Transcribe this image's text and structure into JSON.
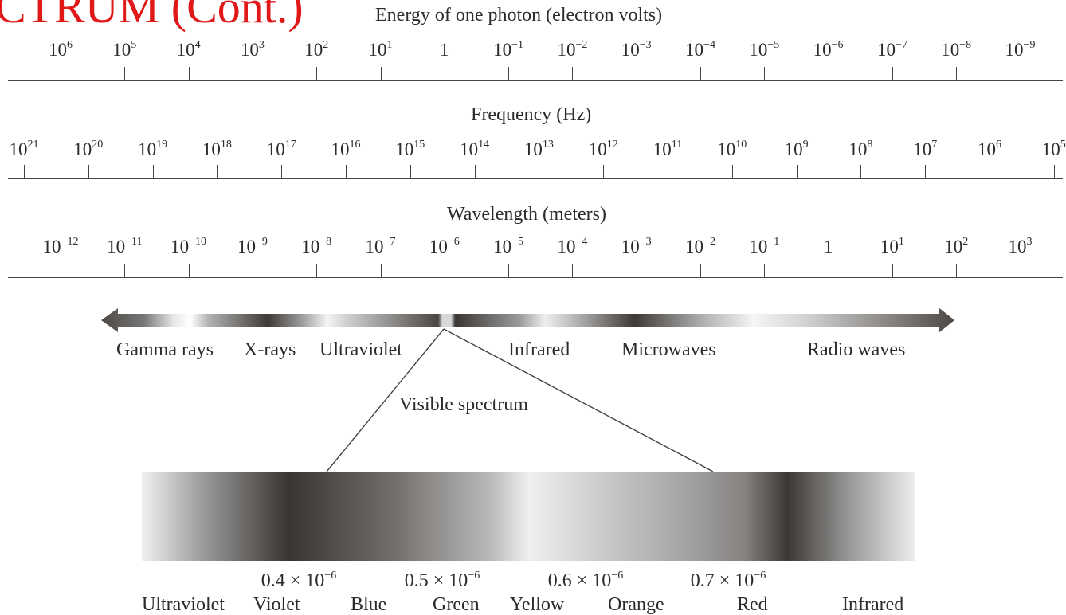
{
  "header": {
    "title_fragment": "CTRUM (Cont.)"
  },
  "energy_scale": {
    "title": "Energy of one photon (electron volts)",
    "ticks": [
      {
        "base": "10",
        "exp": "6"
      },
      {
        "base": "10",
        "exp": "5"
      },
      {
        "base": "10",
        "exp": "4"
      },
      {
        "base": "10",
        "exp": "3"
      },
      {
        "base": "10",
        "exp": "2"
      },
      {
        "base": "10",
        "exp": "1"
      },
      {
        "base": "1",
        "exp": ""
      },
      {
        "base": "10",
        "exp": "−1"
      },
      {
        "base": "10",
        "exp": "−2"
      },
      {
        "base": "10",
        "exp": "−3"
      },
      {
        "base": "10",
        "exp": "−4"
      },
      {
        "base": "10",
        "exp": "−5"
      },
      {
        "base": "10",
        "exp": "−6"
      },
      {
        "base": "10",
        "exp": "−7"
      },
      {
        "base": "10",
        "exp": "−8"
      },
      {
        "base": "10",
        "exp": "−9"
      }
    ]
  },
  "frequency_scale": {
    "title": "Frequency (Hz)",
    "ticks": [
      {
        "base": "10",
        "exp": "21"
      },
      {
        "base": "10",
        "exp": "20"
      },
      {
        "base": "10",
        "exp": "19"
      },
      {
        "base": "10",
        "exp": "18"
      },
      {
        "base": "10",
        "exp": "17"
      },
      {
        "base": "10",
        "exp": "16"
      },
      {
        "base": "10",
        "exp": "15"
      },
      {
        "base": "10",
        "exp": "14"
      },
      {
        "base": "10",
        "exp": "13"
      },
      {
        "base": "10",
        "exp": "12"
      },
      {
        "base": "10",
        "exp": "11"
      },
      {
        "base": "10",
        "exp": "10"
      },
      {
        "base": "10",
        "exp": "9"
      },
      {
        "base": "10",
        "exp": "8"
      },
      {
        "base": "10",
        "exp": "7"
      },
      {
        "base": "10",
        "exp": "6"
      },
      {
        "base": "10",
        "exp": "5"
      }
    ]
  },
  "wavelength_scale": {
    "title": "Wavelength (meters)",
    "ticks": [
      {
        "base": "10",
        "exp": "−12"
      },
      {
        "base": "10",
        "exp": "−11"
      },
      {
        "base": "10",
        "exp": "−10"
      },
      {
        "base": "10",
        "exp": "−9"
      },
      {
        "base": "10",
        "exp": "−8"
      },
      {
        "base": "10",
        "exp": "−7"
      },
      {
        "base": "10",
        "exp": "−6"
      },
      {
        "base": "10",
        "exp": "−5"
      },
      {
        "base": "10",
        "exp": "−4"
      },
      {
        "base": "10",
        "exp": "−3"
      },
      {
        "base": "10",
        "exp": "−2"
      },
      {
        "base": "10",
        "exp": "−1"
      },
      {
        "base": "1",
        "exp": ""
      },
      {
        "base": "10",
        "exp": "1"
      },
      {
        "base": "10",
        "exp": "2"
      },
      {
        "base": "10",
        "exp": "3"
      }
    ]
  },
  "spectrum_bands": [
    "Gamma rays",
    "X-rays",
    "Ultraviolet",
    "Infrared",
    "Microwaves",
    "Radio waves"
  ],
  "visible_spectrum": {
    "label": "Visible spectrum",
    "wavelength_marks": [
      {
        "mantissa": "0.4 × 10",
        "exp": "−6"
      },
      {
        "mantissa": "0.5 × 10",
        "exp": "−6"
      },
      {
        "mantissa": "0.6 × 10",
        "exp": "−6"
      },
      {
        "mantissa": "0.7 × 10",
        "exp": "−6"
      }
    ],
    "color_labels": [
      "Ultraviolet",
      "Violet",
      "Blue",
      "Green",
      "Yellow",
      "Orange",
      "Red",
      "Infrared"
    ]
  },
  "colors": {
    "title_red": "#e01818",
    "ink": "#2b2b2b",
    "line": "#444444"
  }
}
